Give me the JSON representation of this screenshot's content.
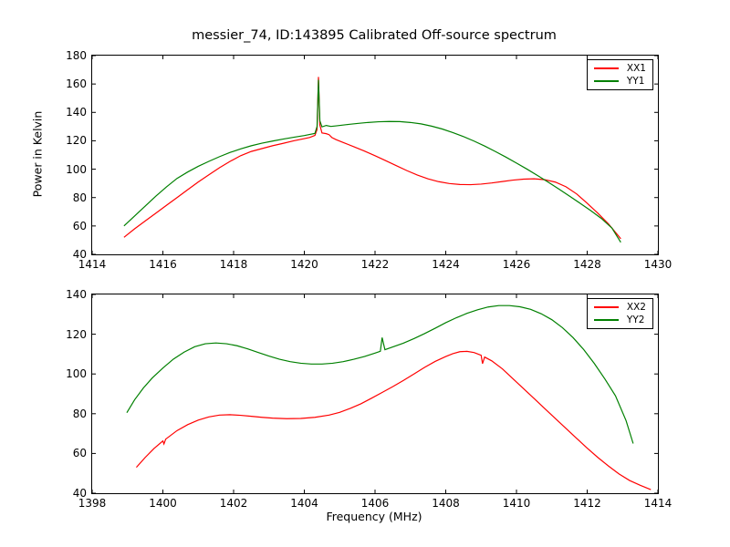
{
  "figure": {
    "background": "#ffffff",
    "axis_color": "#000000"
  },
  "chart_data": [
    {
      "type": "line",
      "title": "messier_74, ID:143895 Calibrated Off-source spectrum",
      "xlabel": "",
      "ylabel": "Power in Kelvin",
      "xlim": [
        1414,
        1430
      ],
      "ylim": [
        40,
        180
      ],
      "xticks": [
        1414,
        1416,
        1418,
        1420,
        1422,
        1424,
        1426,
        1428,
        1430
      ],
      "yticks": [
        40,
        60,
        80,
        100,
        120,
        140,
        160,
        180
      ],
      "grid": false,
      "legend_position": "upper right",
      "series": [
        {
          "name": "XX1",
          "color": "#ff0000",
          "points": [
            [
              1414.9,
              52
            ],
            [
              1415.2,
              58
            ],
            [
              1415.5,
              63.5
            ],
            [
              1415.8,
              69
            ],
            [
              1416.1,
              74.5
            ],
            [
              1416.4,
              80
            ],
            [
              1416.7,
              85.5
            ],
            [
              1417,
              91
            ],
            [
              1417.3,
              96
            ],
            [
              1417.6,
              101
            ],
            [
              1417.9,
              105.5
            ],
            [
              1418.2,
              109.5
            ],
            [
              1418.5,
              112.5
            ],
            [
              1418.8,
              114.5
            ],
            [
              1419.1,
              116.5
            ],
            [
              1419.4,
              118.2
            ],
            [
              1419.7,
              120
            ],
            [
              1420,
              121.5
            ],
            [
              1420.15,
              122.3
            ],
            [
              1420.3,
              123.8
            ],
            [
              1420.36,
              128
            ],
            [
              1420.4,
              165
            ],
            [
              1420.44,
              131
            ],
            [
              1420.5,
              125.5
            ],
            [
              1420.62,
              125
            ],
            [
              1420.7,
              124.3
            ],
            [
              1420.78,
              122.3
            ],
            [
              1420.9,
              120.8
            ],
            [
              1421.1,
              118.8
            ],
            [
              1421.4,
              115.8
            ],
            [
              1421.7,
              112.8
            ],
            [
              1422,
              109.5
            ],
            [
              1422.3,
              106
            ],
            [
              1422.6,
              102.5
            ],
            [
              1422.9,
              99
            ],
            [
              1423.2,
              95.8
            ],
            [
              1423.5,
              93.2
            ],
            [
              1423.8,
              91.2
            ],
            [
              1424.1,
              89.9
            ],
            [
              1424.4,
              89.2
            ],
            [
              1424.7,
              89.1
            ],
            [
              1425,
              89.5
            ],
            [
              1425.3,
              90.3
            ],
            [
              1425.6,
              91.3
            ],
            [
              1425.9,
              92.3
            ],
            [
              1426.2,
              93
            ],
            [
              1426.5,
              93.2
            ],
            [
              1426.8,
              92.6
            ],
            [
              1427.1,
              90.9
            ],
            [
              1427.4,
              87.6
            ],
            [
              1427.7,
              82.6
            ],
            [
              1428,
              76
            ],
            [
              1428.3,
              69
            ],
            [
              1428.6,
              61.5
            ],
            [
              1428.95,
              51
            ]
          ]
        },
        {
          "name": "YY1",
          "color": "#008000",
          "points": [
            [
              1414.9,
              60
            ],
            [
              1415.2,
              67
            ],
            [
              1415.5,
              74
            ],
            [
              1415.8,
              81
            ],
            [
              1416.1,
              87.5
            ],
            [
              1416.4,
              93.5
            ],
            [
              1416.7,
              98
            ],
            [
              1417,
              102
            ],
            [
              1417.3,
              105.5
            ],
            [
              1417.6,
              108.8
            ],
            [
              1417.9,
              111.8
            ],
            [
              1418.2,
              114.3
            ],
            [
              1418.5,
              116.5
            ],
            [
              1418.8,
              118.3
            ],
            [
              1419.1,
              119.8
            ],
            [
              1419.4,
              121.2
            ],
            [
              1419.7,
              122.5
            ],
            [
              1420,
              123.7
            ],
            [
              1420.3,
              125.2
            ],
            [
              1420.36,
              130
            ],
            [
              1420.4,
              163
            ],
            [
              1420.44,
              134
            ],
            [
              1420.5,
              129.8
            ],
            [
              1420.62,
              130.8
            ],
            [
              1420.75,
              130.1
            ],
            [
              1420.9,
              130.5
            ],
            [
              1421.2,
              131.4
            ],
            [
              1421.5,
              132.2
            ],
            [
              1421.8,
              132.9
            ],
            [
              1422.1,
              133.4
            ],
            [
              1422.4,
              133.6
            ],
            [
              1422.7,
              133.5
            ],
            [
              1423,
              132.9
            ],
            [
              1423.3,
              131.9
            ],
            [
              1423.6,
              130.3
            ],
            [
              1423.9,
              128.3
            ],
            [
              1424.2,
              125.8
            ],
            [
              1424.5,
              123
            ],
            [
              1424.8,
              119.8
            ],
            [
              1425.1,
              116.3
            ],
            [
              1425.4,
              112.5
            ],
            [
              1425.7,
              108.5
            ],
            [
              1426,
              104.3
            ],
            [
              1426.3,
              100
            ],
            [
              1426.6,
              95.5
            ],
            [
              1426.9,
              90.8
            ],
            [
              1427.2,
              86
            ],
            [
              1427.5,
              81
            ],
            [
              1427.8,
              76
            ],
            [
              1428.1,
              70.8
            ],
            [
              1428.4,
              65.3
            ],
            [
              1428.7,
              58.5
            ],
            [
              1428.95,
              48.5
            ]
          ]
        }
      ]
    },
    {
      "type": "line",
      "title": "",
      "xlabel": "Frequency (MHz)",
      "ylabel": "",
      "xlim": [
        1398,
        1414
      ],
      "ylim": [
        40,
        140
      ],
      "xticks": [
        1398,
        1400,
        1402,
        1404,
        1406,
        1408,
        1410,
        1412,
        1414
      ],
      "yticks": [
        40,
        60,
        80,
        100,
        120,
        140
      ],
      "grid": false,
      "legend_position": "upper right",
      "series": [
        {
          "name": "XX2",
          "color": "#ff0000",
          "points": [
            [
              1399.25,
              53
            ],
            [
              1399.5,
              58
            ],
            [
              1399.75,
              62.5
            ],
            [
              1400,
              66.3
            ],
            [
              1400.03,
              64.8
            ],
            [
              1400.08,
              67.2
            ],
            [
              1400.4,
              71.5
            ],
            [
              1400.7,
              74.5
            ],
            [
              1401,
              76.8
            ],
            [
              1401.3,
              78.4
            ],
            [
              1401.6,
              79.3
            ],
            [
              1401.9,
              79.5
            ],
            [
              1402.2,
              79.2
            ],
            [
              1402.5,
              78.7
            ],
            [
              1402.8,
              78.2
            ],
            [
              1403.1,
              77.8
            ],
            [
              1403.5,
              77.5
            ],
            [
              1403.9,
              77.6
            ],
            [
              1404.3,
              78.2
            ],
            [
              1404.7,
              79.3
            ],
            [
              1405,
              80.7
            ],
            [
              1405.3,
              82.7
            ],
            [
              1405.6,
              85
            ],
            [
              1405.9,
              87.8
            ],
            [
              1406.2,
              90.7
            ],
            [
              1406.5,
              93.6
            ],
            [
              1406.8,
              96.7
            ],
            [
              1407.1,
              100
            ],
            [
              1407.4,
              103.3
            ],
            [
              1407.7,
              106.3
            ],
            [
              1408,
              108.8
            ],
            [
              1408.2,
              110.2
            ],
            [
              1408.4,
              111.2
            ],
            [
              1408.6,
              111.4
            ],
            [
              1408.8,
              110.8
            ],
            [
              1409,
              109.4
            ],
            [
              1409.04,
              105.2
            ],
            [
              1409.1,
              108.5
            ],
            [
              1409.3,
              106.6
            ],
            [
              1409.6,
              102.6
            ],
            [
              1409.9,
              97.6
            ],
            [
              1410.2,
              92.6
            ],
            [
              1410.5,
              87.6
            ],
            [
              1410.8,
              82.6
            ],
            [
              1411.1,
              77.6
            ],
            [
              1411.4,
              72.6
            ],
            [
              1411.7,
              67.6
            ],
            [
              1412,
              62.7
            ],
            [
              1412.3,
              58
            ],
            [
              1412.6,
              53.7
            ],
            [
              1412.9,
              49.7
            ],
            [
              1413.2,
              46.4
            ],
            [
              1413.5,
              44
            ],
            [
              1413.8,
              41.8
            ]
          ]
        },
        {
          "name": "YY2",
          "color": "#008000",
          "points": [
            [
              1398.98,
              80.5
            ],
            [
              1399.2,
              87
            ],
            [
              1399.45,
              93
            ],
            [
              1399.7,
              98
            ],
            [
              1400,
              103
            ],
            [
              1400.3,
              107.5
            ],
            [
              1400.6,
              111
            ],
            [
              1400.9,
              113.7
            ],
            [
              1401.2,
              115.2
            ],
            [
              1401.5,
              115.6
            ],
            [
              1401.8,
              115.2
            ],
            [
              1402.1,
              114.2
            ],
            [
              1402.4,
              112.6
            ],
            [
              1402.7,
              110.8
            ],
            [
              1403,
              109
            ],
            [
              1403.3,
              107.4
            ],
            [
              1403.6,
              106.2
            ],
            [
              1403.9,
              105.4
            ],
            [
              1404.2,
              105
            ],
            [
              1404.5,
              105
            ],
            [
              1404.8,
              105.4
            ],
            [
              1405.1,
              106.2
            ],
            [
              1405.4,
              107.4
            ],
            [
              1405.7,
              108.8
            ],
            [
              1406,
              110.5
            ],
            [
              1406.15,
              111.4
            ],
            [
              1406.2,
              118.3
            ],
            [
              1406.28,
              112.2
            ],
            [
              1406.5,
              113.6
            ],
            [
              1406.8,
              115.5
            ],
            [
              1407.1,
              117.8
            ],
            [
              1407.4,
              120.3
            ],
            [
              1407.7,
              123
            ],
            [
              1408,
              125.8
            ],
            [
              1408.3,
              128.3
            ],
            [
              1408.6,
              130.5
            ],
            [
              1408.9,
              132.3
            ],
            [
              1409.2,
              133.7
            ],
            [
              1409.5,
              134.4
            ],
            [
              1409.8,
              134.4
            ],
            [
              1410.1,
              133.8
            ],
            [
              1410.4,
              132.5
            ],
            [
              1410.7,
              130.3
            ],
            [
              1411,
              127.3
            ],
            [
              1411.3,
              123.3
            ],
            [
              1411.6,
              118.3
            ],
            [
              1411.9,
              112.3
            ],
            [
              1412.2,
              105.3
            ],
            [
              1412.5,
              97.5
            ],
            [
              1412.8,
              89
            ],
            [
              1413.1,
              76.5
            ],
            [
              1413.3,
              65
            ]
          ]
        }
      ]
    }
  ]
}
